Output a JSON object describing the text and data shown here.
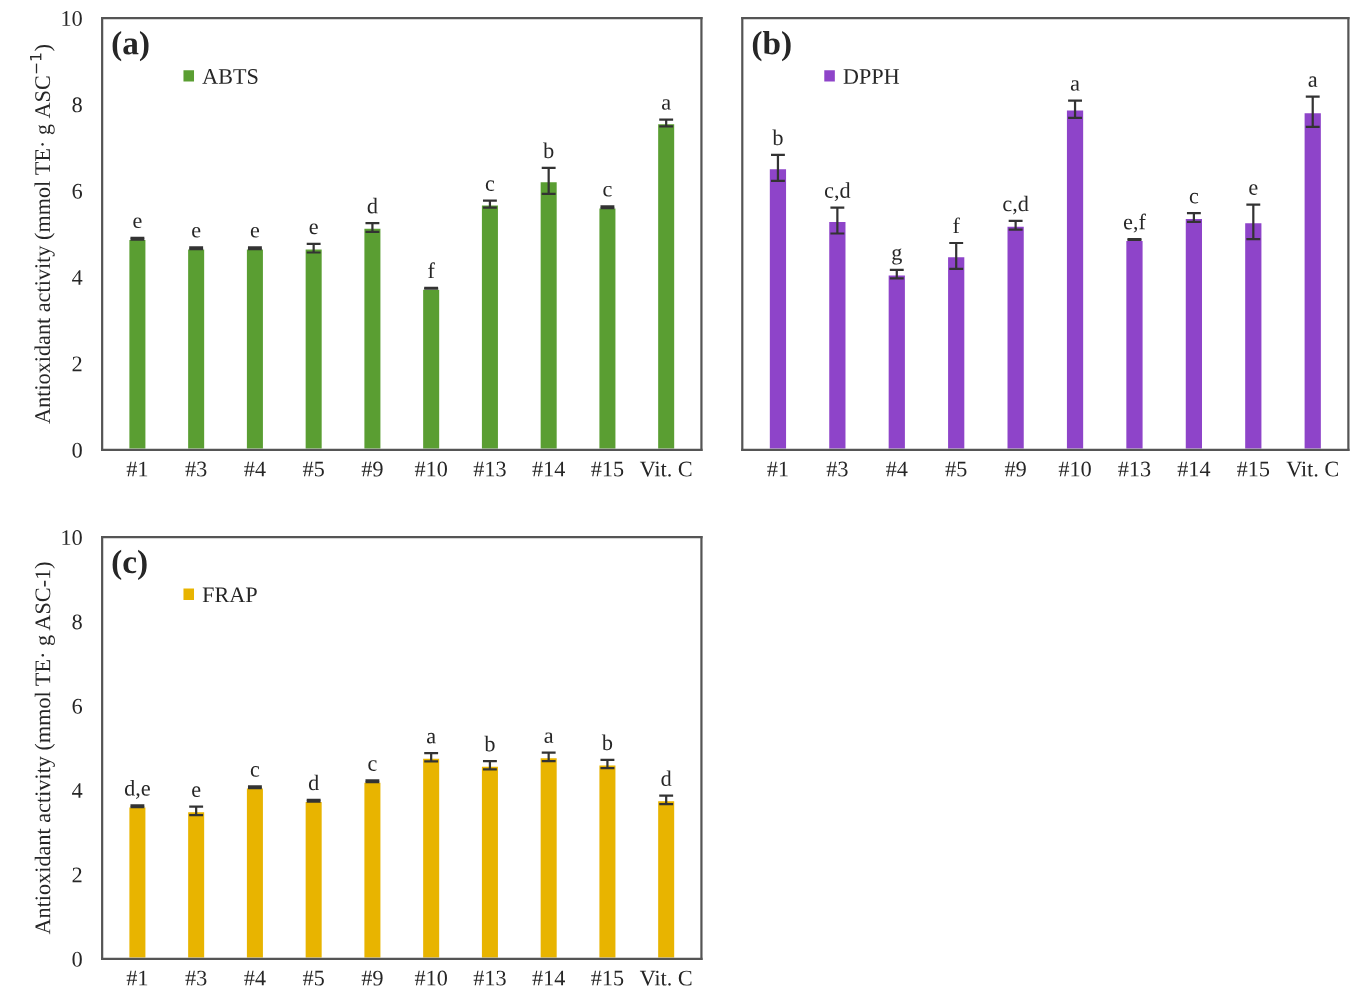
{
  "chart_data": [
    {
      "type": "bar",
      "ylabel": "Antioxidant activity (mmol TE· g ASC$^{−1}$)",
      "annotations": [
        "(a)"
      ],
      "categories": [
        "#1",
        "#3",
        "#4",
        "#5",
        "#9",
        "#10",
        "#13",
        "#14",
        "#15",
        "Vit. C"
      ],
      "series": [
        {
          "name": "ABTS",
          "color": "#5a9e32",
          "values": [
            4.89,
            4.67,
            4.67,
            4.67,
            5.15,
            3.74,
            5.69,
            6.23,
            5.62,
            7.57
          ],
          "errors": [
            0.02,
            0.02,
            0.02,
            0.1,
            0.1,
            0.01,
            0.08,
            0.3,
            0.02,
            0.08
          ],
          "value_labels": [
            "e",
            "e",
            "e",
            "e",
            "d",
            "f",
            "c",
            "b",
            "c",
            "a"
          ]
        }
      ],
      "ylim": [
        0,
        10
      ],
      "yticks": [
        0,
        2,
        4,
        6,
        8,
        10
      ],
      "legend": "top left",
      "grid": false
    },
    {
      "type": "bar",
      "annotations": [
        "(b)"
      ],
      "categories": [
        "#1",
        "#3",
        "#4",
        "#5",
        "#9",
        "#10",
        "#13",
        "#14",
        "#15",
        "Vit. C"
      ],
      "series": [
        {
          "name": "DPPH",
          "color": "#8e44c9",
          "values": [
            6.53,
            5.31,
            4.07,
            4.49,
            5.2,
            7.89,
            4.87,
            5.38,
            5.28,
            7.83
          ],
          "errors": [
            0.3,
            0.3,
            0.1,
            0.3,
            0.1,
            0.2,
            0.01,
            0.1,
            0.4,
            0.35
          ],
          "value_labels": [
            "b",
            "c,d",
            "g",
            "f",
            "c,d",
            "a",
            "e,f",
            "c",
            "e",
            "a"
          ]
        }
      ],
      "ylim": [
        0,
        10
      ],
      "tick_labels": "x",
      "legend": "top left",
      "grid": false
    },
    {
      "type": "bar",
      "ylabel": "Antioxidant activity (mmol TE· g ASC-1)",
      "annotations": [
        "(c)"
      ],
      "categories": [
        "#1",
        "#3",
        "#4",
        "#5",
        "#9",
        "#10",
        "#13",
        "#14",
        "#15",
        "Vit. C"
      ],
      "series": [
        {
          "name": "FRAP",
          "color": "#e8b400",
          "values": [
            3.62,
            3.51,
            4.07,
            3.75,
            4.21,
            4.78,
            4.59,
            4.79,
            4.62,
            3.77
          ],
          "errors": [
            0.02,
            0.1,
            0.02,
            0.02,
            0.02,
            0.1,
            0.1,
            0.1,
            0.1,
            0.1
          ],
          "value_labels": [
            "d,e",
            "e",
            "c",
            "d",
            "c",
            "a",
            "b",
            "a",
            "b",
            "d"
          ]
        }
      ],
      "ylim": [
        0,
        10
      ],
      "yticks": [
        0,
        2,
        4,
        6,
        8,
        10
      ],
      "legend": "top left",
      "grid": false
    }
  ]
}
